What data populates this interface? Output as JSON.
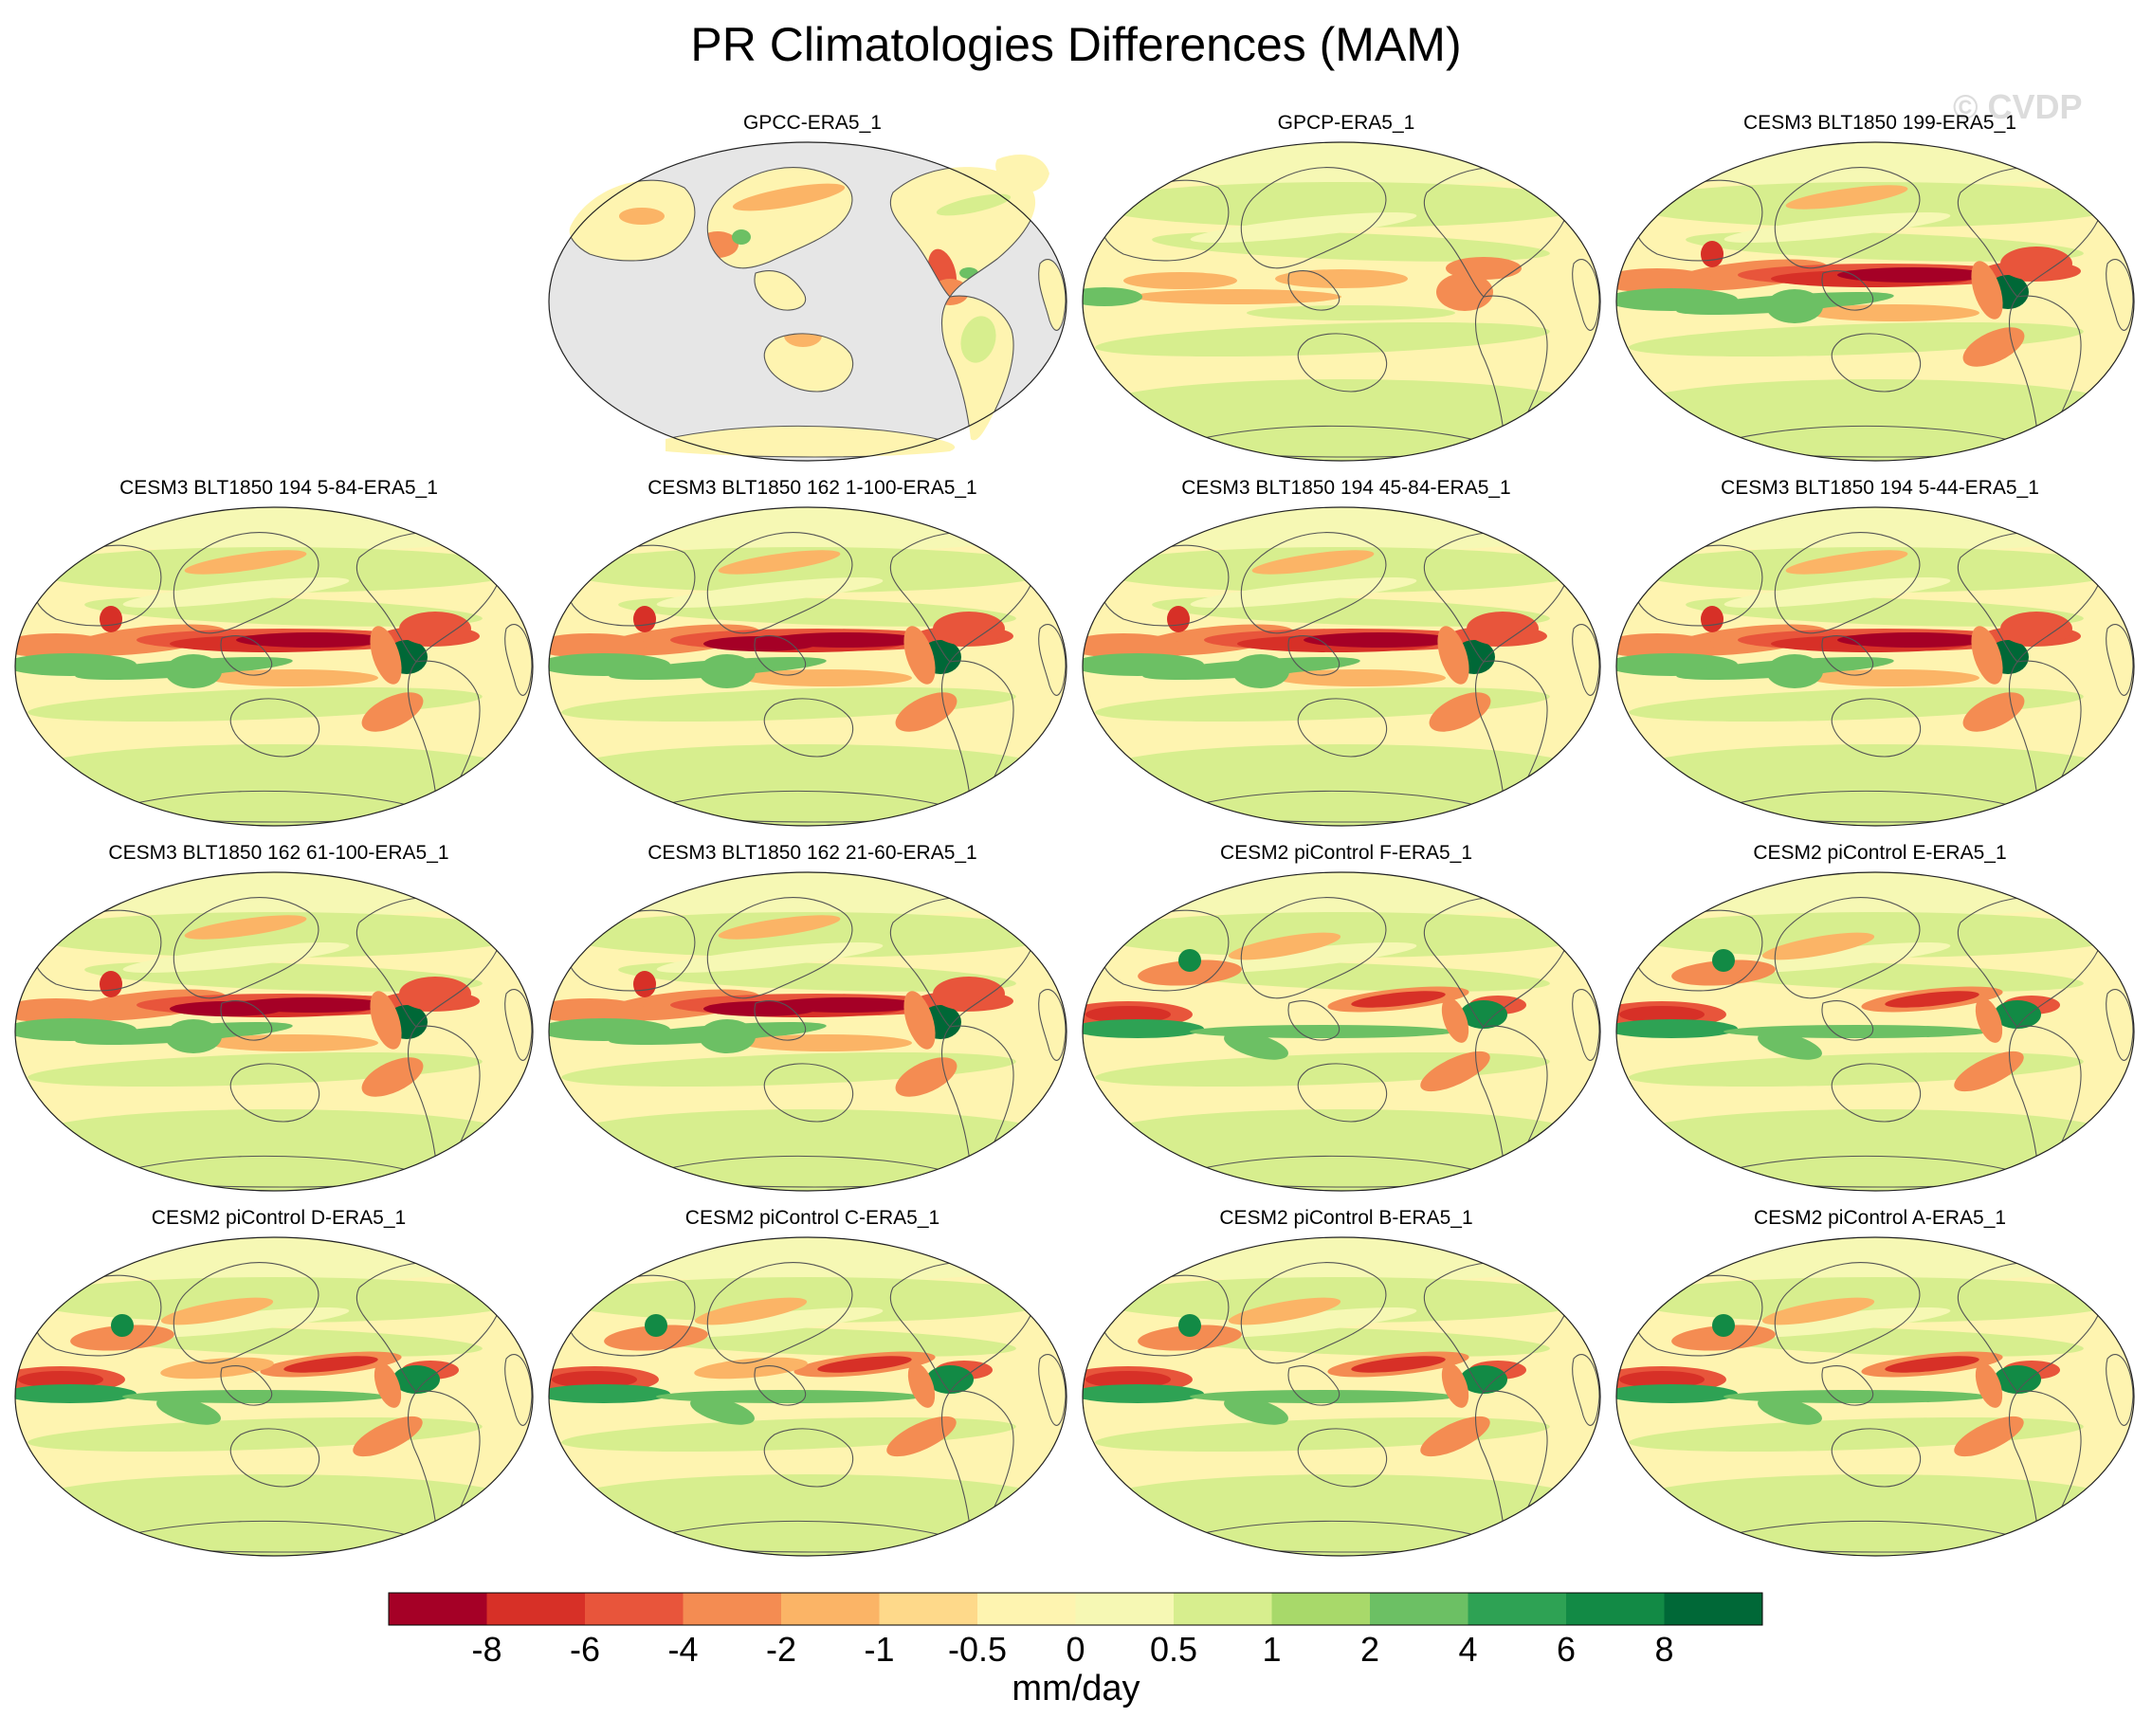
{
  "watermark": "© CVDP",
  "chart_data": {
    "type": "heatmap",
    "title": "PR Climatologies Differences (MAM)",
    "projection": "Robinson (global, Pacific-centered)",
    "units": "mm/day",
    "colorbar": {
      "levels": [
        -8,
        -6,
        -4,
        -2,
        -1,
        -0.5,
        0,
        0.5,
        1,
        2,
        4,
        6,
        8
      ],
      "tick_labels": [
        "-8",
        "-6",
        "-4",
        "-2",
        "-1",
        "-0.5",
        "0",
        "0.5",
        "1",
        "2",
        "4",
        "6",
        "8"
      ],
      "colors": [
        "#a50026",
        "#d73027",
        "#e8553b",
        "#f48c52",
        "#fbb466",
        "#fed98a",
        "#fef4b0",
        "#f6f8b4",
        "#d7ee8e",
        "#a8d96a",
        "#6cc064",
        "#2ea254",
        "#128a45",
        "#006837"
      ]
    },
    "panels": [
      {
        "label": "GPCC-ERA5_1",
        "land_only": true
      },
      {
        "label": "GPCP-ERA5_1",
        "land_only": false
      },
      {
        "label": "CESM3 BLT1850 199-ERA5_1",
        "land_only": false
      },
      {
        "label": "CESM3 BLT1850 194 5-84-ERA5_1",
        "land_only": false
      },
      {
        "label": "CESM3 BLT1850 162 1-100-ERA5_1",
        "land_only": false
      },
      {
        "label": "CESM3 BLT1850 194 45-84-ERA5_1",
        "land_only": false
      },
      {
        "label": "CESM3 BLT1850 194 5-44-ERA5_1",
        "land_only": false
      },
      {
        "label": "CESM3 BLT1850 162 61-100-ERA5_1",
        "land_only": false
      },
      {
        "label": "CESM3 BLT1850 162 21-60-ERA5_1",
        "land_only": false
      },
      {
        "label": "CESM2 piControl F-ERA5_1",
        "land_only": false
      },
      {
        "label": "CESM2 piControl E-ERA5_1",
        "land_only": false
      },
      {
        "label": "CESM2 piControl D-ERA5_1",
        "land_only": false
      },
      {
        "label": "CESM2 piControl C-ERA5_1",
        "land_only": false
      },
      {
        "label": "CESM2 piControl B-ERA5_1",
        "land_only": false
      },
      {
        "label": "CESM2 piControl A-ERA5_1",
        "land_only": false
      }
    ]
  }
}
